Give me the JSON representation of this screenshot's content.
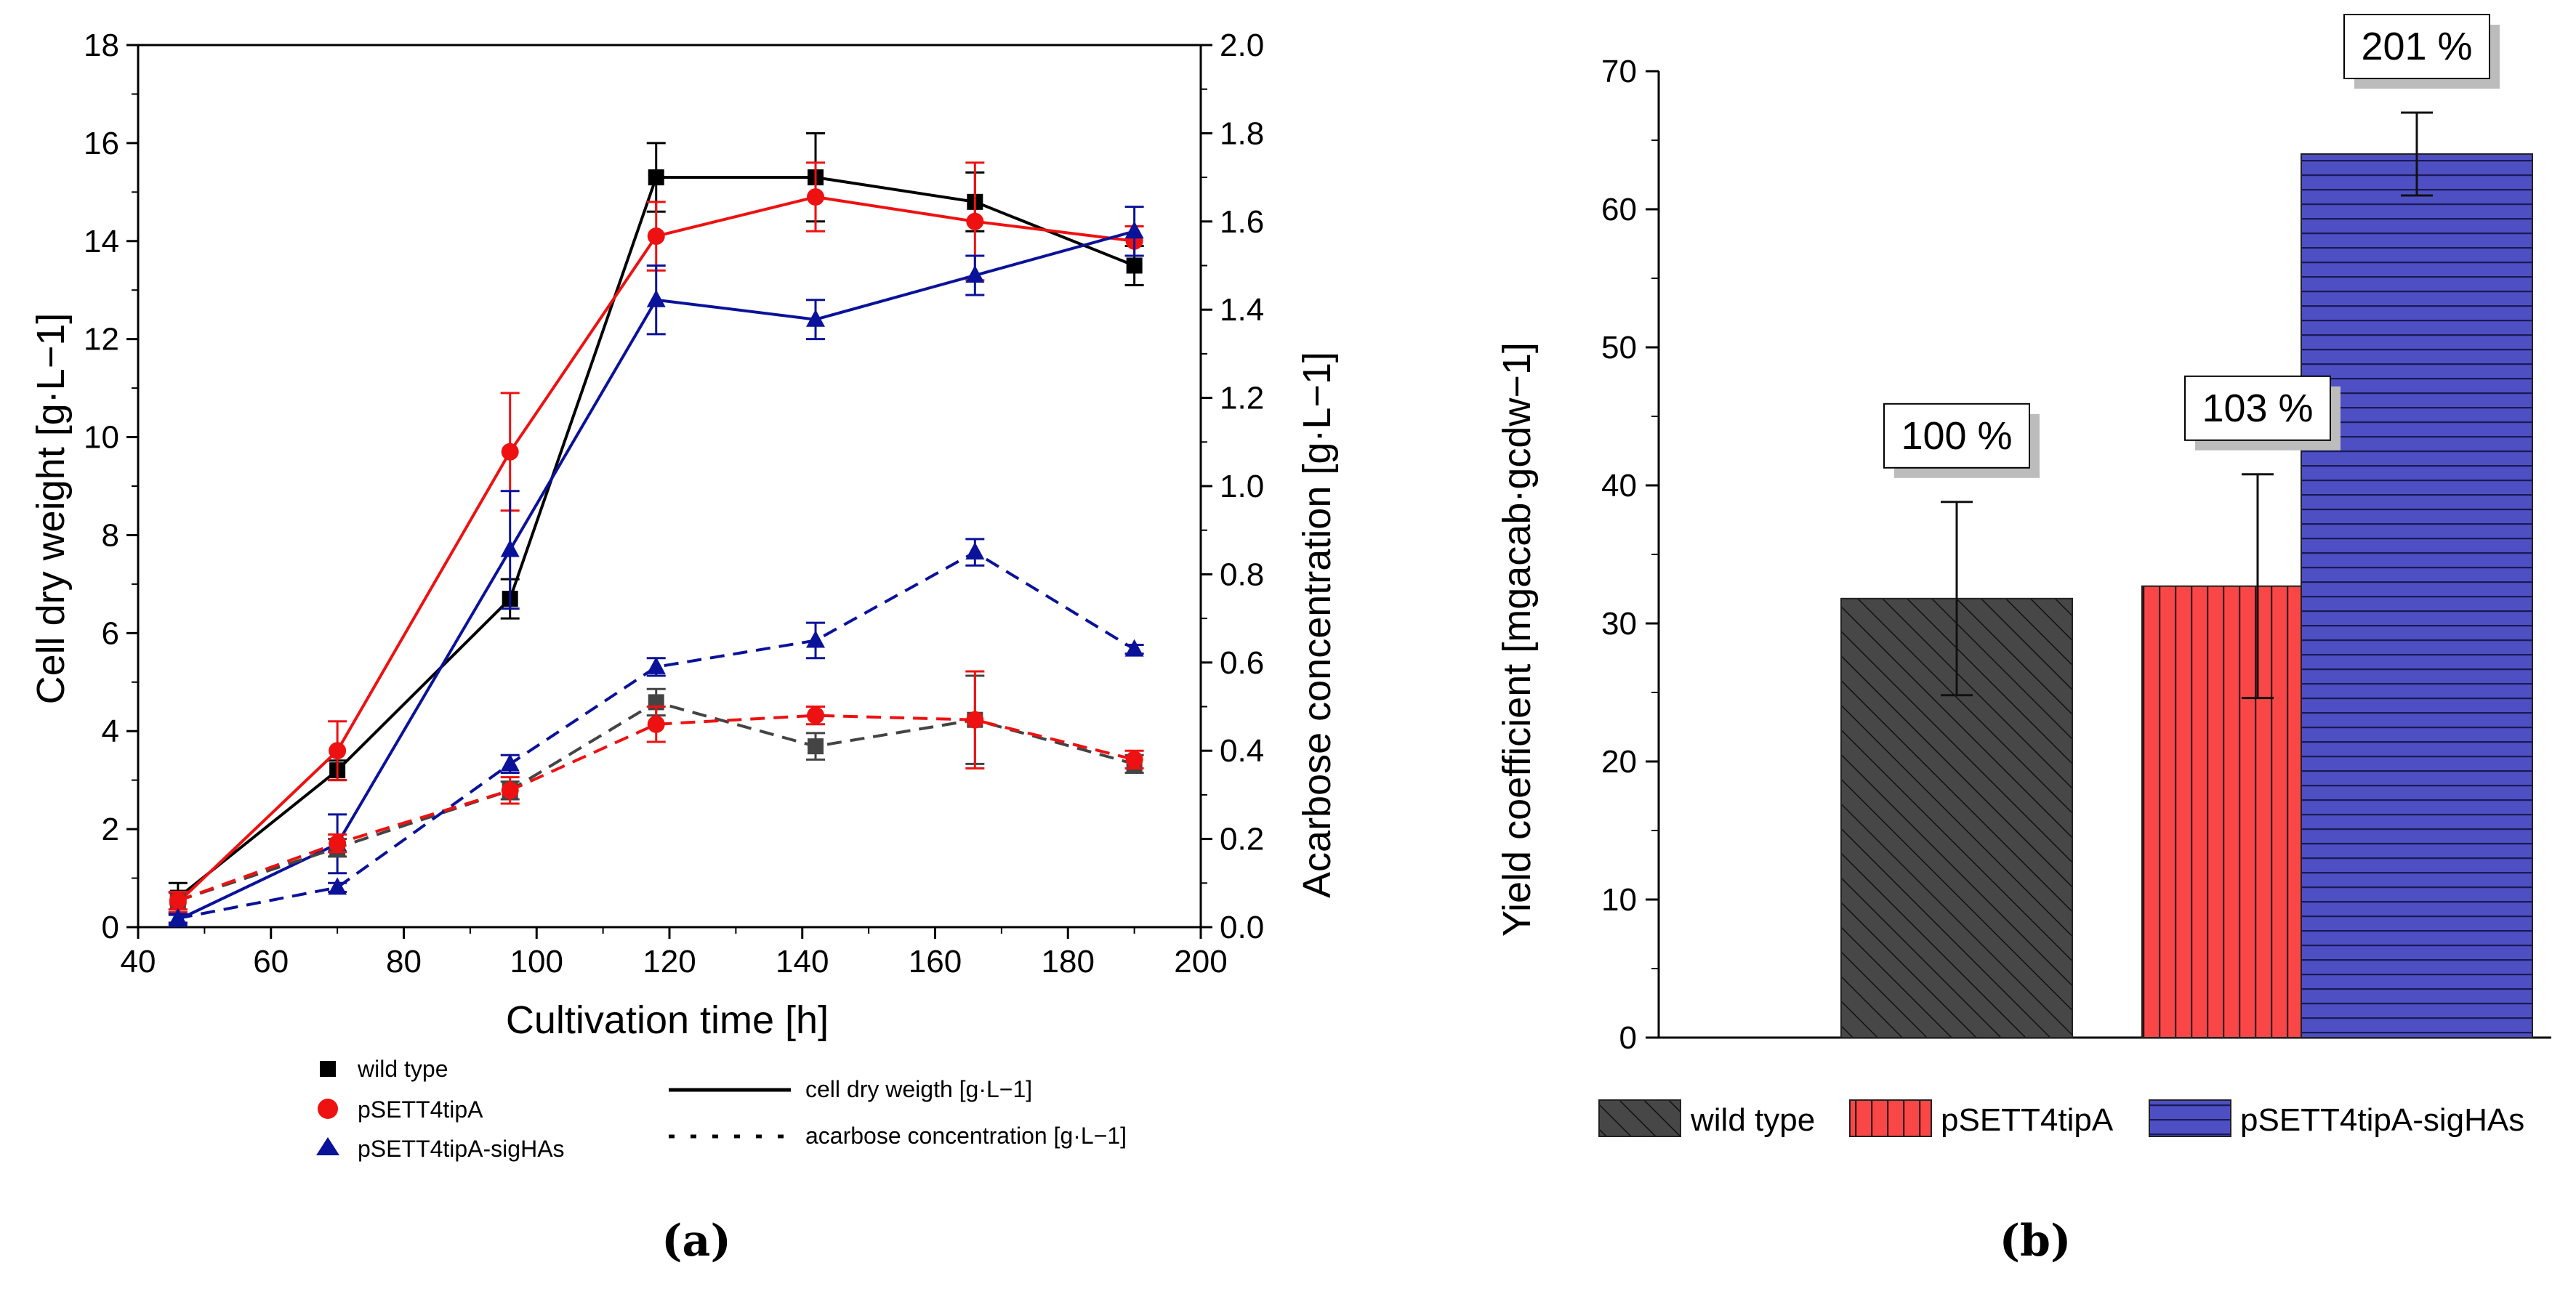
{
  "chart_data": [
    {
      "panel": "(a)",
      "type": "line",
      "title": "",
      "xlabel": "Cultivation time [h]",
      "ylabel_left": "Cell dry weight [g·L−1]",
      "ylabel_right": "Acarbose concentration [g·L−1]",
      "xlim": [
        40,
        200
      ],
      "xticks": [
        40,
        60,
        80,
        100,
        120,
        140,
        160,
        180,
        200
      ],
      "ylim_left": [
        0,
        18
      ],
      "yticks_left": [
        0,
        2,
        4,
        6,
        8,
        10,
        12,
        14,
        16,
        18
      ],
      "ylim_right": [
        0,
        2
      ],
      "yticks_right": [
        "0.0",
        "0.2",
        "0.4",
        "0.6",
        "0.8",
        "1.0",
        "1.2",
        "1.4",
        "1.6",
        "1.8",
        "2.0"
      ],
      "x": [
        46,
        70,
        96,
        118,
        142,
        166,
        190
      ],
      "series": [
        {
          "name": "wild type",
          "measure": "cell dry weight",
          "axis": "left",
          "style": "solid",
          "marker": "square",
          "color": "#000000",
          "values": [
            0.6,
            3.2,
            6.7,
            15.3,
            15.3,
            14.8,
            13.5
          ],
          "errors": [
            0.3,
            0.2,
            0.4,
            0.7,
            0.9,
            0.6,
            0.4
          ]
        },
        {
          "name": "pSETT4tipA",
          "measure": "cell dry weight",
          "axis": "left",
          "style": "solid",
          "marker": "circle",
          "color": "#ee1111",
          "values": [
            0.5,
            3.6,
            9.7,
            14.1,
            14.9,
            14.4,
            14.0
          ],
          "errors": [
            0.2,
            0.6,
            1.2,
            0.7,
            0.7,
            1.2,
            0.3
          ]
        },
        {
          "name": "pSETT4tipA-sigHAs",
          "measure": "cell dry weight",
          "axis": "left",
          "style": "solid",
          "marker": "triangle",
          "color": "#0a129a",
          "values": [
            0.15,
            1.7,
            7.7,
            12.8,
            12.4,
            13.3,
            14.2
          ],
          "errors": [
            0.1,
            0.6,
            1.2,
            0.7,
            0.4,
            0.4,
            0.5
          ]
        },
        {
          "name": "wild type",
          "measure": "acarbose concentration",
          "axis": "right",
          "style": "dashed",
          "marker": "square",
          "color": "#444444",
          "values": [
            0.06,
            0.18,
            0.31,
            0.51,
            0.41,
            0.47,
            0.37
          ],
          "errors": [
            0.02,
            0.02,
            0.02,
            0.03,
            0.03,
            0.1,
            0.02
          ]
        },
        {
          "name": "pSETT4tipA",
          "measure": "acarbose concentration",
          "axis": "right",
          "style": "dashed",
          "marker": "circle",
          "color": "#ee1111",
          "values": [
            0.06,
            0.19,
            0.31,
            0.46,
            0.48,
            0.47,
            0.38
          ],
          "errors": [
            0.02,
            0.02,
            0.03,
            0.04,
            0.02,
            0.11,
            0.02
          ]
        },
        {
          "name": "pSETT4tipA-sigHAs",
          "measure": "acarbose concentration",
          "axis": "right",
          "style": "dashed",
          "marker": "triangle",
          "color": "#0a129a",
          "values": [
            0.02,
            0.09,
            0.37,
            0.59,
            0.65,
            0.85,
            0.63
          ],
          "errors": [
            0.01,
            0.01,
            0.02,
            0.02,
            0.04,
            0.03,
            0.01
          ]
        }
      ],
      "legend_strains": [
        "wild type",
        "pSETT4tipA",
        "pSETT4tipA-sigHAs"
      ],
      "legend_styles": [
        "cell dry weigth [g·L−1]",
        "acarbose concentration [g·L−1]"
      ]
    },
    {
      "panel": "(b)",
      "type": "bar",
      "title": "",
      "xlabel": "",
      "ylabel": "Yield coefficient [mgacab·gcdw−1]",
      "ylim": [
        0,
        70
      ],
      "yticks": [
        0,
        10,
        20,
        30,
        40,
        50,
        60,
        70
      ],
      "categories": [
        "wild type",
        "pSETT4tipA",
        "pSETT4tipA-sigHAs"
      ],
      "values": [
        31.8,
        32.7,
        64.0
      ],
      "errors": [
        7.0,
        8.1,
        3.0
      ],
      "annotations": [
        "100 %",
        "103 %",
        "201 %"
      ],
      "colors": [
        "#474747",
        "#f94747",
        "#4f4fc4"
      ],
      "patterns": [
        "diagonal",
        "vertical",
        "horizontal"
      ]
    }
  ],
  "captions": {
    "a": "(a)",
    "b": "(b)"
  }
}
